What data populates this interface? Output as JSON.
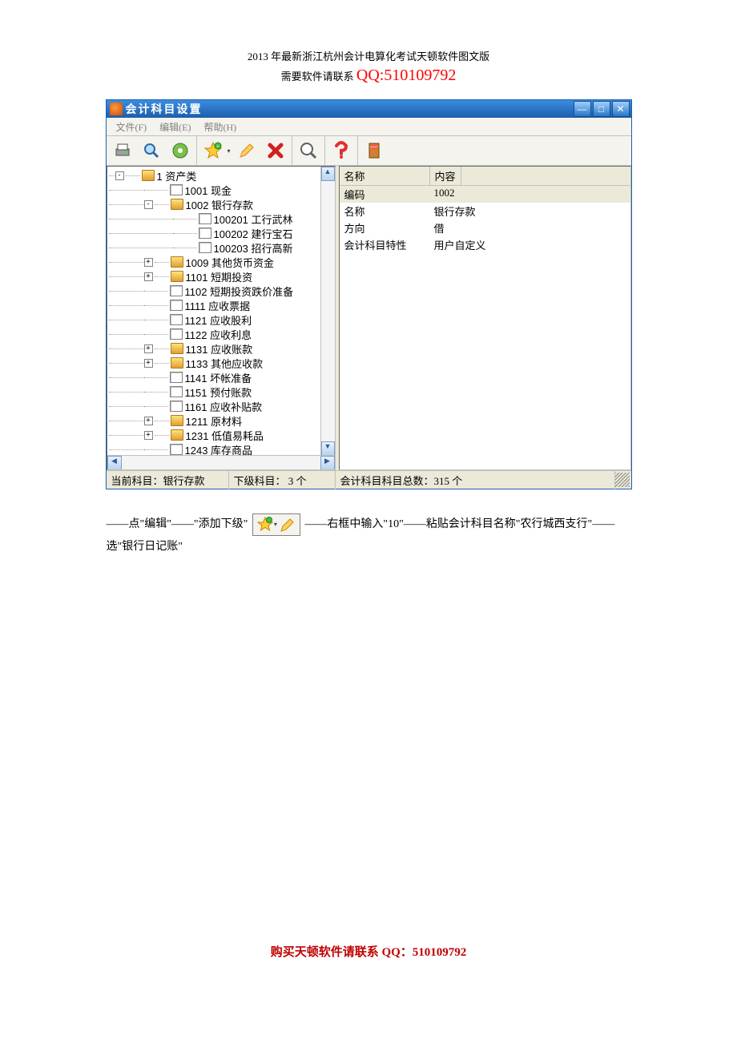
{
  "header": {
    "line1": "2013 年最新浙江杭州会计电算化考试天顿软件图文版",
    "line2_prefix": "需要软件请联系 ",
    "line2_qq": "QQ:510109792"
  },
  "window": {
    "title": "会计科目设置",
    "menu": {
      "file": "文件(F)",
      "edit": "编辑(E)",
      "help": "帮助(H)"
    },
    "tree": [
      {
        "indent": 0,
        "exp": "-",
        "icon": "folder",
        "label": "1 资产类"
      },
      {
        "indent": 1,
        "exp": "",
        "icon": "doc",
        "label": "1001 现金"
      },
      {
        "indent": 1,
        "exp": "-",
        "icon": "folder",
        "label": "1002 银行存款"
      },
      {
        "indent": 2,
        "exp": "",
        "icon": "doc",
        "label": "100201 工行武林"
      },
      {
        "indent": 2,
        "exp": "",
        "icon": "doc",
        "label": "100202 建行宝石"
      },
      {
        "indent": 2,
        "exp": "",
        "icon": "doc",
        "label": "100203 招行高新"
      },
      {
        "indent": 1,
        "exp": "+",
        "icon": "folder",
        "label": "1009 其他货币资金"
      },
      {
        "indent": 1,
        "exp": "+",
        "icon": "folder",
        "label": "1101 短期投资"
      },
      {
        "indent": 1,
        "exp": "",
        "icon": "doc",
        "label": "1102 短期投资跌价准备"
      },
      {
        "indent": 1,
        "exp": "",
        "icon": "doc",
        "label": "1111 应收票据"
      },
      {
        "indent": 1,
        "exp": "",
        "icon": "doc",
        "label": "1121 应收股利"
      },
      {
        "indent": 1,
        "exp": "",
        "icon": "doc",
        "label": "1122 应收利息"
      },
      {
        "indent": 1,
        "exp": "+",
        "icon": "folder",
        "label": "1131 应收账款"
      },
      {
        "indent": 1,
        "exp": "+",
        "icon": "folder",
        "label": "1133 其他应收款"
      },
      {
        "indent": 1,
        "exp": "",
        "icon": "doc",
        "label": "1141 坏帐准备"
      },
      {
        "indent": 1,
        "exp": "",
        "icon": "doc",
        "label": "1151 预付账款"
      },
      {
        "indent": 1,
        "exp": "",
        "icon": "doc",
        "label": "1161 应收补贴款"
      },
      {
        "indent": 1,
        "exp": "+",
        "icon": "folder",
        "label": "1211 原材料"
      },
      {
        "indent": 1,
        "exp": "+",
        "icon": "folder",
        "label": "1231 低值易耗品"
      },
      {
        "indent": 1,
        "exp": "",
        "icon": "doc",
        "label": "1243 库存商品"
      }
    ],
    "right": {
      "headers": {
        "c1": "名称",
        "c2": "内容"
      },
      "rows": [
        {
          "c1": "编码",
          "c2": "1002"
        },
        {
          "c1": "名称",
          "c2": "银行存款"
        },
        {
          "c1": "方向",
          "c2": "借"
        },
        {
          "c1": "会计科目特性",
          "c2": "用户自定义"
        }
      ]
    },
    "status": {
      "a": "当前科目：银行存款",
      "b": "下级科目： 3 个",
      "c": "会计科目科目总数：315 个"
    }
  },
  "instructions": {
    "pre": "——点\"编辑\"——\"添加下级\"",
    "post": "——右框中输入\"10\"——粘贴会计科目名称\"农行城西支行\"——选\"银行日记账\""
  },
  "footer": "购买天顿软件请联系 QQ：510109792"
}
